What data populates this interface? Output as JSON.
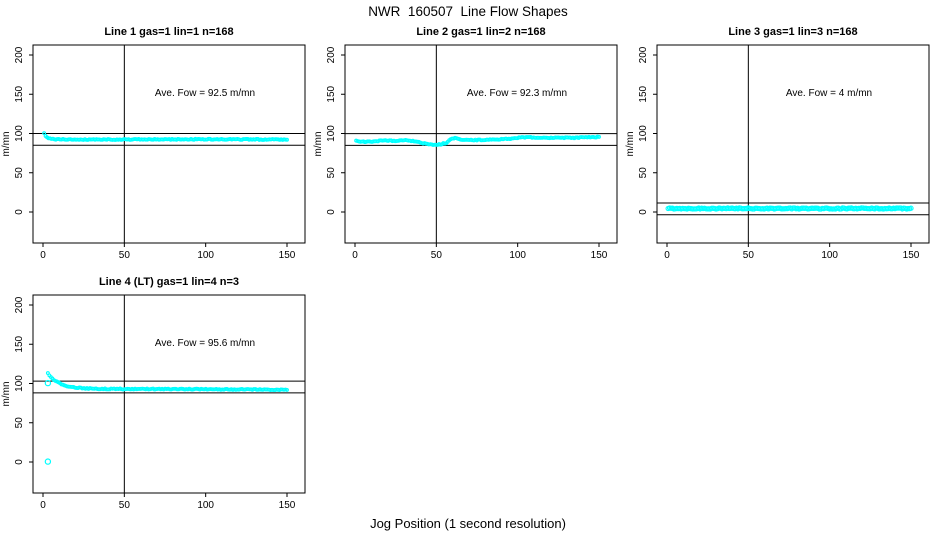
{
  "page": {
    "title": "NWR  160507  Line Flow Shapes",
    "xlabel": "Jog Position (1 second resolution)"
  },
  "colors": {
    "series": "#00FFFF",
    "axis": "#000000",
    "background": "#FFFFFF"
  },
  "chart_data": [
    {
      "type": "scatter",
      "title": "Line 1 gas=1 lin=1 n=168",
      "annotation": "Ave. Fow =  92.5  m/mn",
      "ave_flow": 92.5,
      "n": 168,
      "ylabel": "m/mn",
      "x_ticks": [
        0,
        50,
        100,
        150
      ],
      "y_ticks": [
        0,
        50,
        100,
        150,
        200
      ],
      "xlim": [
        0,
        150
      ],
      "ylim": [
        0,
        200
      ],
      "vline_x": 50,
      "hlines": [
        100,
        85
      ],
      "marker_radius": 1.4,
      "noise": 0.6,
      "n_points": 168,
      "x_range": [
        0.7,
        150
      ],
      "profile": [
        [
          0.7,
          100
        ],
        [
          1.5,
          97
        ],
        [
          3,
          94
        ],
        [
          6,
          92.8
        ],
        [
          15,
          92.4
        ],
        [
          50,
          92.4
        ],
        [
          100,
          92.6
        ],
        [
          150,
          92.4
        ]
      ],
      "outliers": []
    },
    {
      "type": "scatter",
      "title": "Line 2 gas=1 lin=2 n=168",
      "annotation": "Ave. Fow =  92.3  m/mn",
      "ave_flow": 92.3,
      "n": 168,
      "ylabel": "m/mn",
      "x_ticks": [
        0,
        50,
        100,
        150
      ],
      "y_ticks": [
        0,
        50,
        100,
        150,
        200
      ],
      "xlim": [
        0,
        150
      ],
      "ylim": [
        0,
        200
      ],
      "vline_x": 50,
      "hlines": [
        99.8,
        84.8
      ],
      "marker_radius": 1.4,
      "noise": 0.6,
      "n_points": 168,
      "x_range": [
        0.7,
        150
      ],
      "profile": [
        [
          0.7,
          90.5
        ],
        [
          6,
          89.5
        ],
        [
          12,
          90
        ],
        [
          18,
          91.5
        ],
        [
          24,
          90.5
        ],
        [
          30,
          91.5
        ],
        [
          36,
          90.5
        ],
        [
          42,
          87.5
        ],
        [
          47,
          86
        ],
        [
          52,
          86
        ],
        [
          56,
          88
        ],
        [
          59,
          93
        ],
        [
          62,
          94.5
        ],
        [
          66,
          92
        ],
        [
          72,
          91.5
        ],
        [
          80,
          92
        ],
        [
          88,
          92.5
        ],
        [
          96,
          93.5
        ],
        [
          103,
          95
        ],
        [
          110,
          95
        ],
        [
          118,
          94.5
        ],
        [
          126,
          94.8
        ],
        [
          134,
          94.3
        ],
        [
          142,
          95.3
        ],
        [
          150,
          95.5
        ]
      ],
      "outliers": []
    },
    {
      "type": "scatter",
      "title": "Line 3 gas=1 lin=3 n=168",
      "annotation": "Ave. Fow =  4  m/mn",
      "ave_flow": 4,
      "n": 168,
      "ylabel": "m/mn",
      "x_ticks": [
        0,
        50,
        100,
        150
      ],
      "y_ticks": [
        0,
        50,
        100,
        150,
        200
      ],
      "xlim": [
        0,
        150
      ],
      "ylim": [
        0,
        200
      ],
      "vline_x": 50,
      "hlines": [
        11.5,
        -3.5
      ],
      "marker_radius": 2.1,
      "noise": 0.7,
      "n_points": 168,
      "x_range": [
        0.7,
        150
      ],
      "profile": [
        [
          0.7,
          4.5
        ],
        [
          150,
          4.5
        ]
      ],
      "outliers": []
    },
    {
      "type": "scatter",
      "title": "Line 4 (LT) gas=1 lin=4 n=3",
      "annotation": "Ave. Fow =  95.6  m/mn",
      "ave_flow": 95.6,
      "n": 3,
      "ylabel": "m/mn",
      "x_ticks": [
        0,
        50,
        100,
        150
      ],
      "y_ticks": [
        0,
        50,
        100,
        150,
        200
      ],
      "xlim": [
        0,
        150
      ],
      "ylim": [
        0,
        200
      ],
      "vline_x": 50,
      "hlines": [
        103.1,
        88.1
      ],
      "marker_radius": 1.4,
      "noise": 0.6,
      "n_points": 160,
      "x_range": [
        3,
        150
      ],
      "profile": [
        [
          3,
          113
        ],
        [
          4,
          110.5
        ],
        [
          6,
          106
        ],
        [
          9,
          101.5
        ],
        [
          12,
          98.5
        ],
        [
          16,
          96
        ],
        [
          20,
          94.8
        ],
        [
          26,
          93.8
        ],
        [
          35,
          93.2
        ],
        [
          50,
          93
        ],
        [
          70,
          93
        ],
        [
          90,
          92.8
        ],
        [
          110,
          92.6
        ],
        [
          130,
          92.4
        ],
        [
          150,
          91.8
        ]
      ],
      "outliers": [
        [
          3,
          100.5
        ],
        [
          3,
          0.5
        ]
      ]
    }
  ]
}
